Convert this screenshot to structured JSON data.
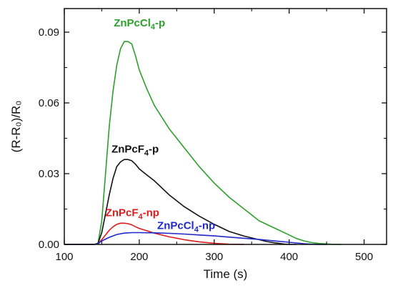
{
  "chart_data": {
    "type": "line",
    "xlabel": "Time (s)",
    "ylabel": "(R-R₀)/R₀",
    "xlim": [
      100,
      530
    ],
    "ylim": [
      0,
      0.1
    ],
    "x_ticks": [
      100,
      200,
      300,
      400,
      500
    ],
    "x_tick_labels": [
      "100",
      "200",
      "300",
      "400",
      "500"
    ],
    "y_ticks": [
      0,
      0.03,
      0.06,
      0.09
    ],
    "y_tick_labels": [
      "0.00",
      "0.03",
      "0.06",
      "0.09"
    ],
    "grid": false,
    "legend": "none (inline labels)",
    "series": [
      {
        "name": "ZnPcCl₄-p",
        "label_base": "ZnPcCl",
        "label_sub": "4",
        "label_suffix": "-p",
        "color": "#2ca02c",
        "x": [
          100,
          140,
          145,
          150,
          155,
          160,
          165,
          170,
          175,
          180,
          185,
          190,
          195,
          200,
          210,
          220,
          240,
          260,
          280,
          300,
          320,
          340,
          360,
          380,
          400,
          410,
          420,
          430,
          440,
          450,
          460,
          470
        ],
        "y": [
          0,
          0,
          0.0005,
          0.01,
          0.03,
          0.05,
          0.065,
          0.076,
          0.083,
          0.086,
          0.086,
          0.085,
          0.08,
          0.074,
          0.066,
          0.059,
          0.049,
          0.041,
          0.033,
          0.026,
          0.02,
          0.015,
          0.01,
          0.007,
          0.004,
          0.0025,
          0.0015,
          0.0008,
          0.0004,
          0.0002,
          0,
          0
        ]
      },
      {
        "name": "ZnPcF₄-p",
        "label_base": "ZnPcF",
        "label_sub": "4",
        "label_suffix": "-p",
        "color": "#111111",
        "x": [
          100,
          140,
          145,
          150,
          155,
          160,
          165,
          170,
          175,
          180,
          185,
          190,
          195,
          200,
          210,
          220,
          240,
          260,
          280,
          300,
          320,
          340,
          360,
          370,
          380,
          390,
          395,
          400,
          410
        ],
        "y": [
          0,
          0,
          0.0005,
          0.005,
          0.013,
          0.021,
          0.028,
          0.033,
          0.035,
          0.036,
          0.036,
          0.0355,
          0.034,
          0.032,
          0.0295,
          0.027,
          0.021,
          0.016,
          0.012,
          0.0085,
          0.0055,
          0.0035,
          0.002,
          0.0012,
          0.0007,
          0.0003,
          0.0001,
          0,
          0
        ]
      },
      {
        "name": "ZnPcF₄-np",
        "label_base": "ZnPcF",
        "label_sub": "4",
        "label_suffix": "-np",
        "color": "#e01b1b",
        "x": [
          100,
          140,
          145,
          150,
          155,
          160,
          165,
          170,
          175,
          180,
          185,
          190,
          195,
          200,
          210,
          220,
          240,
          260,
          280,
          300,
          320,
          340
        ],
        "y": [
          0,
          0,
          0.0003,
          0.002,
          0.004,
          0.006,
          0.0075,
          0.0085,
          0.009,
          0.009,
          0.0088,
          0.0083,
          0.0075,
          0.0068,
          0.0058,
          0.0048,
          0.0032,
          0.002,
          0.0011,
          0.0005,
          0.0001,
          0
        ]
      },
      {
        "name": "ZnPcCl₄-np",
        "label_base": "ZnPcCl",
        "label_sub": "4",
        "label_suffix": "-np",
        "color": "#1f28c8",
        "x": [
          100,
          140,
          145,
          150,
          160,
          170,
          180,
          190,
          200,
          220,
          240,
          260,
          280,
          300,
          320,
          340,
          360,
          380,
          400,
          410,
          420,
          430,
          440,
          450
        ],
        "y": [
          0,
          0,
          0.0003,
          0.0015,
          0.003,
          0.0042,
          0.0048,
          0.005,
          0.005,
          0.0049,
          0.0047,
          0.0044,
          0.004,
          0.0036,
          0.0031,
          0.0026,
          0.0021,
          0.0015,
          0.0009,
          0.0006,
          0.0003,
          0.0001,
          0,
          0
        ]
      }
    ]
  }
}
